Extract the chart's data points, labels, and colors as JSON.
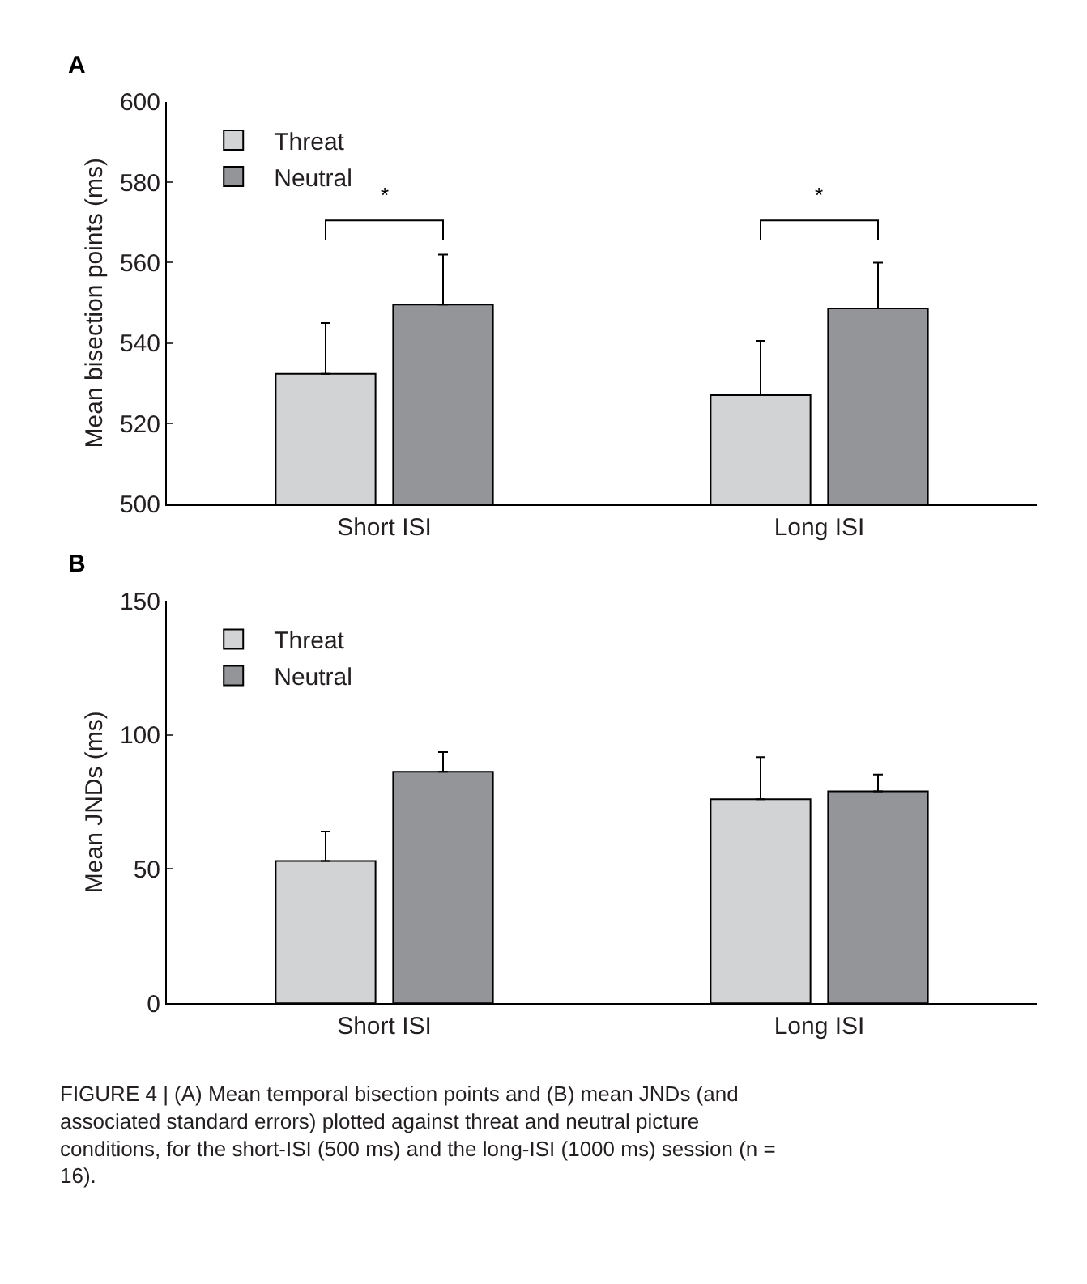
{
  "chart_data": [
    {
      "type": "bar",
      "title": "A",
      "ylabel": "Mean bisection points (ms)",
      "categories": [
        "Short ISI",
        "Long ISI"
      ],
      "ylim": [
        500,
        600
      ],
      "yticks": [
        500,
        520,
        540,
        560,
        580,
        600
      ],
      "legend": "top left",
      "series": [
        {
          "name": "Threat",
          "color": "#d2d3d5",
          "values": [
            532.4,
            527.1
          ],
          "errors": [
            [
              532.4,
              545
            ],
            [
              527.1,
              540.6
            ]
          ]
        },
        {
          "name": "Neutral",
          "color": "#939598",
          "values": [
            549.6,
            548.6
          ],
          "errors": [
            [
              549.6,
              562
            ],
            [
              548.6,
              560
            ]
          ]
        }
      ],
      "annotations": [
        "*",
        "*"
      ]
    },
    {
      "type": "bar",
      "title": "B",
      "ylabel": "Mean JNDs (ms)",
      "categories": [
        "Short ISI",
        "Long ISI"
      ],
      "ylim": [
        0,
        150
      ],
      "yticks": [
        0,
        50,
        100,
        150
      ],
      "legend": "top left",
      "series": [
        {
          "name": "Threat",
          "color": "#d2d3d5",
          "values": [
            53,
            76
          ],
          "errors": [
            [
              53,
              64
            ],
            [
              76,
              91.7
            ]
          ]
        },
        {
          "name": "Neutral",
          "color": "#939598",
          "values": [
            86.3,
            79
          ],
          "errors": [
            [
              86.3,
              93.6
            ],
            [
              79,
              85.2
            ]
          ]
        }
      ],
      "annotations": [
        "FIGURE 4 | (A) Mean temporal bisection points and (B) mean JNDs (and associated standard errors) plotted against threat and neutral picture conditions, for the short-ISI (500 ms) and the long-ISI (1000 ms) session (n = 16)."
      ]
    }
  ]
}
